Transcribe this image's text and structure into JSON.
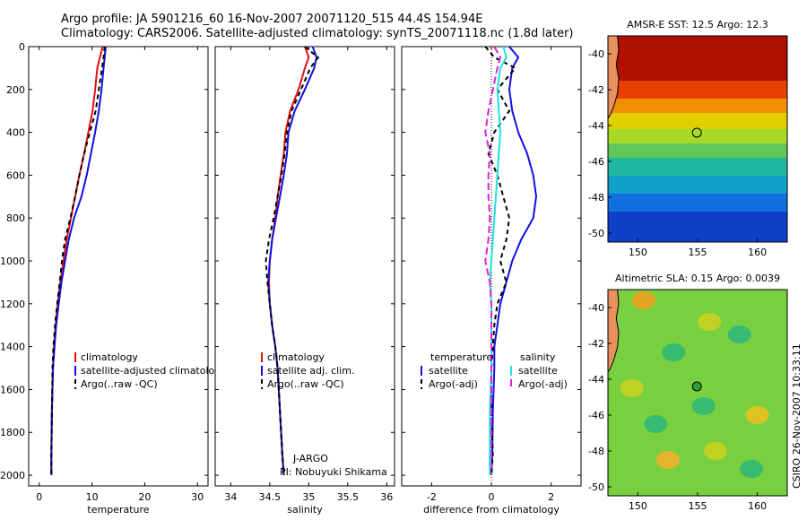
{
  "header": {
    "line1": "Argo profile: JA 5901216_60 16-Nov-2007 20071120_515 44.4S 154.94E",
    "line2": "Climatology: CARS2006. Satellite-adjusted climatology: synTS_20071118.nc (1.8d later)"
  },
  "side_credit": "CSIRO 26-Nov-2007 10:33:11",
  "colors": {
    "climatology": "#e01010",
    "satellite": "#1010e0",
    "argo": "#000000",
    "sal_satellite": "#20e0e0",
    "sal_argo": "#e020e0",
    "marker": "#30a030"
  },
  "chart_data": [
    {
      "id": "temperature",
      "type": "line",
      "xlabel": "temperature",
      "ylabel": "",
      "xlim": [
        -2,
        32
      ],
      "ylim": [
        0,
        2050
      ],
      "y_reversed": true,
      "xticks": [
        0,
        10,
        20,
        30
      ],
      "yticks": [
        0,
        200,
        400,
        600,
        800,
        1000,
        1200,
        1400,
        1600,
        1800,
        2000
      ],
      "legend": {
        "position": "bottom-right",
        "entries": [
          "climatology",
          "satellite-adjusted climatology",
          "Argo(..raw -QC)"
        ]
      },
      "series": [
        {
          "name": "climatology",
          "color": "#e01010",
          "dash": "",
          "x": [
            12.0,
            11.5,
            11.0,
            10.6,
            10.1,
            9.3,
            8.5,
            7.6,
            6.8,
            6.0,
            5.2,
            4.6,
            4.0,
            3.5,
            3.1,
            2.8,
            2.6,
            2.4,
            2.3,
            2.3
          ],
          "y": [
            0,
            50,
            100,
            200,
            300,
            400,
            500,
            600,
            700,
            800,
            900,
            1000,
            1100,
            1200,
            1300,
            1400,
            1500,
            1700,
            1900,
            2000
          ]
        },
        {
          "name": "satellite-adjusted climatology",
          "color": "#1010e0",
          "dash": "",
          "x": [
            12.6,
            12.4,
            12.2,
            11.8,
            11.3,
            10.6,
            9.8,
            9.0,
            8.0,
            6.6,
            5.6,
            4.9,
            4.2,
            3.7,
            3.2,
            2.9,
            2.6,
            2.4,
            2.3,
            2.3
          ],
          "y": [
            0,
            50,
            100,
            200,
            300,
            400,
            500,
            600,
            700,
            800,
            900,
            1000,
            1100,
            1200,
            1300,
            1400,
            1500,
            1700,
            1900,
            2000
          ]
        },
        {
          "name": "Argo(..raw -QC)",
          "color": "#000000",
          "dash": "5,4",
          "x": [
            12.4,
            12.2,
            11.9,
            11.3,
            10.7,
            9.6,
            8.5,
            7.6,
            6.8,
            5.9,
            4.9,
            4.3,
            3.9,
            3.4,
            3.0,
            2.7,
            2.5,
            2.4,
            2.3,
            2.3
          ],
          "y": [
            0,
            50,
            100,
            200,
            300,
            400,
            500,
            600,
            700,
            800,
            900,
            1000,
            1100,
            1200,
            1300,
            1400,
            1500,
            1700,
            1900,
            2000
          ]
        }
      ]
    },
    {
      "id": "salinity",
      "type": "line",
      "xlabel": "salinity",
      "ylabel": "",
      "xlim": [
        33.8,
        36.1
      ],
      "ylim": [
        0,
        2050
      ],
      "y_reversed": true,
      "xticks": [
        34,
        34.5,
        35,
        35.5,
        36
      ],
      "legend": {
        "position": "bottom-right",
        "entries": [
          "climatology",
          "satellite adj. clim.",
          "Argo(..raw -QC)"
        ]
      },
      "annotations": [
        "J-ARGO",
        "PI: Nobuyuki Shikama"
      ],
      "series": [
        {
          "name": "climatology",
          "color": "#e01010",
          "dash": "",
          "x": [
            34.95,
            35.0,
            34.95,
            34.87,
            34.76,
            34.7,
            34.68,
            34.64,
            34.6,
            34.57,
            34.53,
            34.5,
            34.49,
            34.5,
            34.53,
            34.57,
            34.6,
            34.63,
            34.66,
            34.68
          ],
          "y": [
            0,
            50,
            100,
            200,
            300,
            400,
            500,
            600,
            700,
            800,
            900,
            1000,
            1100,
            1200,
            1300,
            1400,
            1500,
            1700,
            1900,
            2000
          ]
        },
        {
          "name": "satellite adj. clim.",
          "color": "#1010e0",
          "dash": "",
          "x": [
            35.05,
            35.1,
            35.07,
            34.95,
            34.82,
            34.74,
            34.72,
            34.68,
            34.63,
            34.58,
            34.53,
            34.5,
            34.48,
            34.5,
            34.53,
            34.57,
            34.6,
            34.63,
            34.66,
            34.68
          ],
          "y": [
            0,
            50,
            100,
            200,
            300,
            400,
            500,
            600,
            700,
            800,
            900,
            1000,
            1100,
            1200,
            1300,
            1400,
            1500,
            1700,
            1900,
            2000
          ]
        },
        {
          "name": "Argo(..raw -QC)",
          "color": "#000000",
          "dash": "5,4",
          "x": [
            34.95,
            35.12,
            35.02,
            34.9,
            34.78,
            34.72,
            34.69,
            34.65,
            34.6,
            34.55,
            34.49,
            34.45,
            34.47,
            34.5,
            34.53,
            34.57,
            34.6,
            34.63,
            34.66,
            34.68
          ],
          "y": [
            0,
            50,
            100,
            200,
            300,
            400,
            500,
            600,
            700,
            800,
            900,
            1000,
            1100,
            1200,
            1300,
            1400,
            1500,
            1700,
            1900,
            2000
          ]
        }
      ]
    },
    {
      "id": "difference",
      "type": "line",
      "xlabel": "difference from climatology",
      "ylabel": "",
      "xlim": [
        -3,
        3
      ],
      "ylim": [
        0,
        2050
      ],
      "y_reversed": true,
      "xticks": [
        -2,
        0,
        2
      ],
      "legend": {
        "position": "bottom",
        "entries": [
          "temperature",
          "satellite",
          "Argo(-adj)",
          "salinity",
          "satellite",
          "Argo(-adj)"
        ]
      },
      "series": [
        {
          "name": "temperature satellite",
          "color": "#1010e0",
          "dash": "",
          "x": [
            0.6,
            0.9,
            0.7,
            0.6,
            0.7,
            0.9,
            1.2,
            1.4,
            1.5,
            1.4,
            1.0,
            0.7,
            0.5,
            0.3,
            0.2,
            0.1,
            0.1,
            0.05,
            0.03,
            0.0
          ],
          "y": [
            0,
            50,
            100,
            200,
            300,
            400,
            500,
            600,
            700,
            800,
            900,
            1000,
            1100,
            1200,
            1300,
            1400,
            1500,
            1700,
            1900,
            2000
          ]
        },
        {
          "name": "temperature Argo(-adj)",
          "color": "#000000",
          "dash": "5,4",
          "x": [
            -0.2,
            0.1,
            0.8,
            0.2,
            0.6,
            0.1,
            -0.1,
            0.2,
            0.4,
            0.6,
            0.5,
            0.3,
            0.5,
            0.2,
            0.1,
            0.05,
            0.0,
            0.0,
            0.05,
            0.0
          ],
          "y": [
            0,
            50,
            100,
            200,
            300,
            400,
            500,
            600,
            700,
            800,
            900,
            1000,
            1100,
            1200,
            1300,
            1400,
            1500,
            1700,
            1900,
            2000
          ]
        },
        {
          "name": "salinity satellite",
          "color": "#20e0e0",
          "dash": "",
          "x": [
            0.4,
            0.5,
            0.3,
            0.2,
            0.25,
            0.3,
            0.25,
            0.2,
            0.15,
            0.1,
            0.05,
            0.0,
            -0.05,
            0.0,
            0.0,
            0.0,
            0.0,
            -0.05,
            -0.05,
            -0.05
          ],
          "y": [
            0,
            50,
            100,
            200,
            300,
            400,
            500,
            600,
            700,
            800,
            900,
            1000,
            1100,
            1200,
            1300,
            1400,
            1500,
            1700,
            1900,
            2000
          ]
        },
        {
          "name": "salinity Argo(-adj)",
          "color": "#e020e0",
          "dash": "8,4",
          "x": [
            0.1,
            0.3,
            0.2,
            0.05,
            -0.1,
            -0.2,
            -0.05,
            -0.1,
            -0.1,
            -0.05,
            -0.1,
            -0.2,
            -0.05,
            0.0,
            0.0,
            0.0,
            0.0,
            0.0,
            0.0,
            0.0
          ],
          "y": [
            0,
            50,
            100,
            200,
            300,
            400,
            500,
            600,
            700,
            800,
            900,
            1000,
            1100,
            1200,
            1300,
            1400,
            1500,
            1700,
            1900,
            2000
          ]
        }
      ]
    },
    {
      "id": "sst_map",
      "type": "heatmap",
      "title": "AMSR-E SST: 12.5 Argo: 12.3",
      "xlim": [
        147.5,
        162.5
      ],
      "ylim": [
        -50.5,
        -39
      ],
      "xticks": [
        150,
        155,
        160
      ],
      "yticks": [
        -40,
        -42,
        -44,
        -46,
        -48,
        -50
      ],
      "marker": {
        "lon": 154.94,
        "lat": -44.4
      },
      "color_bands": [
        {
          "lat_top": -39,
          "lat_bottom": -41.5,
          "color": "#b01000"
        },
        {
          "lat_top": -41.5,
          "lat_bottom": -42.5,
          "color": "#e84000"
        },
        {
          "lat_top": -42.5,
          "lat_bottom": -43.3,
          "color": "#f09000"
        },
        {
          "lat_top": -43.3,
          "lat_bottom": -44.2,
          "color": "#e0d000"
        },
        {
          "lat_top": -44.2,
          "lat_bottom": -45.0,
          "color": "#a8d828"
        },
        {
          "lat_top": -45.0,
          "lat_bottom": -45.8,
          "color": "#60c858"
        },
        {
          "lat_top": -45.8,
          "lat_bottom": -46.8,
          "color": "#20b8a0"
        },
        {
          "lat_top": -46.8,
          "lat_bottom": -47.8,
          "color": "#10a0c8"
        },
        {
          "lat_top": -47.8,
          "lat_bottom": -48.8,
          "color": "#1070e0"
        },
        {
          "lat_top": -48.8,
          "lat_bottom": -50.5,
          "color": "#1040c8"
        }
      ]
    },
    {
      "id": "sla_map",
      "type": "heatmap",
      "title": "Altimetric SLA: 0.15 Argo: 0.0039",
      "xlim": [
        147.5,
        162.5
      ],
      "ylim": [
        -50.5,
        -39
      ],
      "xticks": [
        150,
        155,
        160
      ],
      "yticks": [
        -40,
        -42,
        -44,
        -46,
        -48,
        -50
      ],
      "marker": {
        "lon": 154.94,
        "lat": -44.4
      },
      "color_bands": [
        {
          "lat_top": -39,
          "lat_bottom": -50.5,
          "color": "#78d040"
        }
      ],
      "blobs": [
        {
          "lon": 150.5,
          "lat": -39.6,
          "color": "#f0a020"
        },
        {
          "lon": 149.5,
          "lat": -44.5,
          "color": "#c8d020"
        },
        {
          "lon": 156.0,
          "lat": -40.8,
          "color": "#c8d020"
        },
        {
          "lon": 160.0,
          "lat": -46.0,
          "color": "#e8c020"
        },
        {
          "lon": 152.5,
          "lat": -48.5,
          "color": "#f0b030"
        },
        {
          "lon": 156.5,
          "lat": -48.0,
          "color": "#c8d020"
        },
        {
          "lon": 153.0,
          "lat": -42.5,
          "color": "#30b878"
        },
        {
          "lon": 158.5,
          "lat": -41.5,
          "color": "#30b878"
        },
        {
          "lon": 155.5,
          "lat": -45.5,
          "color": "#30b878"
        },
        {
          "lon": 151.5,
          "lat": -46.5,
          "color": "#30b878"
        },
        {
          "lon": 159.5,
          "lat": -49.0,
          "color": "#30b878"
        }
      ]
    }
  ]
}
